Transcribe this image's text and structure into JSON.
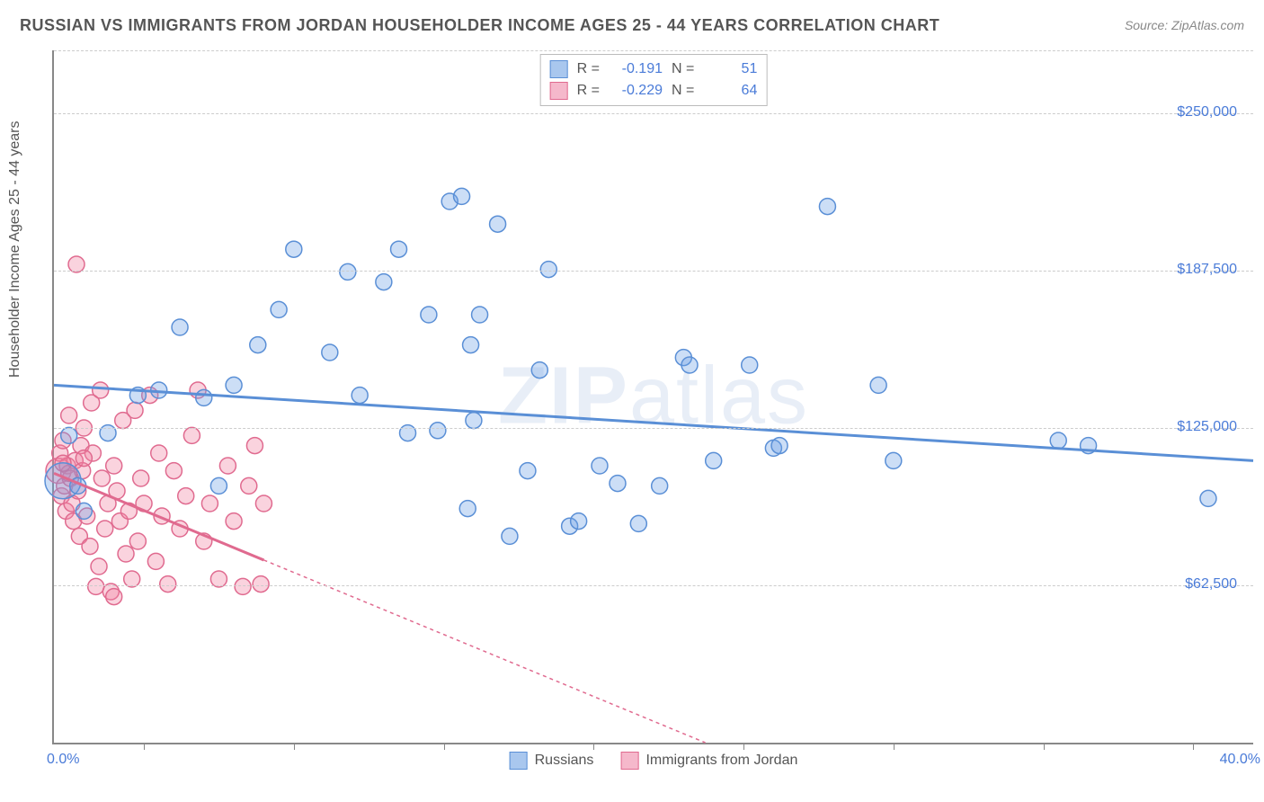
{
  "title": "RUSSIAN VS IMMIGRANTS FROM JORDAN HOUSEHOLDER INCOME AGES 25 - 44 YEARS CORRELATION CHART",
  "source": "Source: ZipAtlas.com",
  "watermark_a": "ZIP",
  "watermark_b": "atlas",
  "ylabel": "Householder Income Ages 25 - 44 years",
  "chart": {
    "type": "scatter",
    "xlim": [
      0,
      40
    ],
    "ylim": [
      0,
      275000
    ],
    "x_min_label": "0.0%",
    "x_max_label": "40.0%",
    "ytick_step": 62500,
    "ytick_labels": [
      "$62,500",
      "$125,000",
      "$187,500",
      "$250,000"
    ],
    "xtick_positions": [
      3,
      8,
      13,
      18,
      23,
      28,
      33,
      38
    ],
    "grid_color": "#cccccc",
    "background_color": "#ffffff",
    "axis_color": "#888888",
    "marker_radius": 9,
    "marker_stroke_width": 1.5,
    "trend_line_width": 3,
    "series": [
      {
        "name": "Russians",
        "fill": "rgba(110,160,230,0.35)",
        "stroke": "#5a8fd6",
        "swatch_fill": "#a9c7ee",
        "swatch_stroke": "#5a8fd6",
        "R": "-0.191",
        "N": "51",
        "trend": {
          "y_at_x0": 142000,
          "y_at_xmax": 112000,
          "dash": "none"
        },
        "points": [
          {
            "x": 0.3,
            "y": 104000,
            "r": 20
          },
          {
            "x": 0.5,
            "y": 122000
          },
          {
            "x": 0.8,
            "y": 102000
          },
          {
            "x": 1.0,
            "y": 92000
          },
          {
            "x": 1.8,
            "y": 123000
          },
          {
            "x": 2.8,
            "y": 138000
          },
          {
            "x": 3.5,
            "y": 140000
          },
          {
            "x": 4.2,
            "y": 165000
          },
          {
            "x": 5.0,
            "y": 137000
          },
          {
            "x": 5.5,
            "y": 102000
          },
          {
            "x": 6.8,
            "y": 158000
          },
          {
            "x": 7.5,
            "y": 172000
          },
          {
            "x": 8.0,
            "y": 196000
          },
          {
            "x": 9.2,
            "y": 155000
          },
          {
            "x": 9.8,
            "y": 187000
          },
          {
            "x": 10.2,
            "y": 138000
          },
          {
            "x": 11.0,
            "y": 183000
          },
          {
            "x": 11.5,
            "y": 196000
          },
          {
            "x": 11.8,
            "y": 123000
          },
          {
            "x": 12.5,
            "y": 170000
          },
          {
            "x": 12.8,
            "y": 124000
          },
          {
            "x": 13.2,
            "y": 215000
          },
          {
            "x": 13.6,
            "y": 217000
          },
          {
            "x": 13.8,
            "y": 93000
          },
          {
            "x": 13.9,
            "y": 158000
          },
          {
            "x": 14.2,
            "y": 170000
          },
          {
            "x": 14.0,
            "y": 128000
          },
          {
            "x": 14.8,
            "y": 206000
          },
          {
            "x": 15.2,
            "y": 82000
          },
          {
            "x": 15.8,
            "y": 108000
          },
          {
            "x": 16.5,
            "y": 188000
          },
          {
            "x": 17.2,
            "y": 86000
          },
          {
            "x": 17.5,
            "y": 88000
          },
          {
            "x": 18.2,
            "y": 110000
          },
          {
            "x": 18.8,
            "y": 103000
          },
          {
            "x": 19.5,
            "y": 87000
          },
          {
            "x": 20.2,
            "y": 102000
          },
          {
            "x": 21.0,
            "y": 153000
          },
          {
            "x": 21.2,
            "y": 150000
          },
          {
            "x": 22.0,
            "y": 112000
          },
          {
            "x": 23.2,
            "y": 150000
          },
          {
            "x": 24.0,
            "y": 117000
          },
          {
            "x": 24.2,
            "y": 118000
          },
          {
            "x": 25.8,
            "y": 213000
          },
          {
            "x": 27.5,
            "y": 142000
          },
          {
            "x": 28.0,
            "y": 112000
          },
          {
            "x": 33.5,
            "y": 120000
          },
          {
            "x": 34.5,
            "y": 118000
          },
          {
            "x": 38.5,
            "y": 97000
          },
          {
            "x": 16.2,
            "y": 148000
          },
          {
            "x": 6.0,
            "y": 142000
          }
        ]
      },
      {
        "name": "Immigrants from Jordan",
        "fill": "rgba(240,130,160,0.35)",
        "stroke": "#e06a8f",
        "swatch_fill": "#f5b8cb",
        "swatch_stroke": "#e06a8f",
        "R": "-0.229",
        "N": "64",
        "trend": {
          "y_at_x0": 107000,
          "y_at_xmax": -90000,
          "solid_until_x": 7.0,
          "dash": "4,4"
        },
        "points": [
          {
            "x": 0.15,
            "y": 108000,
            "r": 14
          },
          {
            "x": 0.2,
            "y": 115000
          },
          {
            "x": 0.25,
            "y": 98000
          },
          {
            "x": 0.3,
            "y": 120000
          },
          {
            "x": 0.35,
            "y": 102000
          },
          {
            "x": 0.4,
            "y": 92000
          },
          {
            "x": 0.45,
            "y": 110000
          },
          {
            "x": 0.5,
            "y": 130000
          },
          {
            "x": 0.55,
            "y": 105000
          },
          {
            "x": 0.6,
            "y": 95000
          },
          {
            "x": 0.65,
            "y": 88000
          },
          {
            "x": 0.7,
            "y": 112000
          },
          {
            "x": 0.75,
            "y": 190000
          },
          {
            "x": 0.8,
            "y": 100000
          },
          {
            "x": 0.85,
            "y": 82000
          },
          {
            "x": 0.9,
            "y": 118000
          },
          {
            "x": 0.95,
            "y": 108000
          },
          {
            "x": 1.0,
            "y": 125000
          },
          {
            "x": 1.1,
            "y": 90000
          },
          {
            "x": 1.2,
            "y": 78000
          },
          {
            "x": 1.25,
            "y": 135000
          },
          {
            "x": 1.3,
            "y": 115000
          },
          {
            "x": 1.4,
            "y": 62000
          },
          {
            "x": 1.5,
            "y": 70000
          },
          {
            "x": 1.55,
            "y": 140000
          },
          {
            "x": 1.6,
            "y": 105000
          },
          {
            "x": 1.7,
            "y": 85000
          },
          {
            "x": 1.8,
            "y": 95000
          },
          {
            "x": 1.9,
            "y": 60000
          },
          {
            "x": 2.0,
            "y": 110000
          },
          {
            "x": 2.1,
            "y": 100000
          },
          {
            "x": 2.2,
            "y": 88000
          },
          {
            "x": 2.3,
            "y": 128000
          },
          {
            "x": 2.4,
            "y": 75000
          },
          {
            "x": 2.5,
            "y": 92000
          },
          {
            "x": 2.6,
            "y": 65000
          },
          {
            "x": 2.7,
            "y": 132000
          },
          {
            "x": 2.8,
            "y": 80000
          },
          {
            "x": 2.9,
            "y": 105000
          },
          {
            "x": 3.0,
            "y": 95000
          },
          {
            "x": 3.2,
            "y": 138000
          },
          {
            "x": 3.4,
            "y": 72000
          },
          {
            "x": 3.5,
            "y": 115000
          },
          {
            "x": 3.6,
            "y": 90000
          },
          {
            "x": 3.8,
            "y": 63000
          },
          {
            "x": 4.0,
            "y": 108000
          },
          {
            "x": 4.2,
            "y": 85000
          },
          {
            "x": 4.4,
            "y": 98000
          },
          {
            "x": 4.6,
            "y": 122000
          },
          {
            "x": 4.8,
            "y": 140000
          },
          {
            "x": 5.0,
            "y": 80000
          },
          {
            "x": 5.2,
            "y": 95000
          },
          {
            "x": 5.5,
            "y": 65000
          },
          {
            "x": 5.8,
            "y": 110000
          },
          {
            "x": 6.0,
            "y": 88000
          },
          {
            "x": 6.3,
            "y": 62000
          },
          {
            "x": 6.5,
            "y": 102000
          },
          {
            "x": 6.7,
            "y": 118000
          },
          {
            "x": 6.9,
            "y": 63000
          },
          {
            "x": 7.0,
            "y": 95000
          },
          {
            "x": 2.0,
            "y": 58000
          },
          {
            "x": 1.0,
            "y": 113000
          },
          {
            "x": 0.5,
            "y": 107000
          },
          {
            "x": 0.3,
            "y": 111000
          }
        ]
      }
    ]
  }
}
